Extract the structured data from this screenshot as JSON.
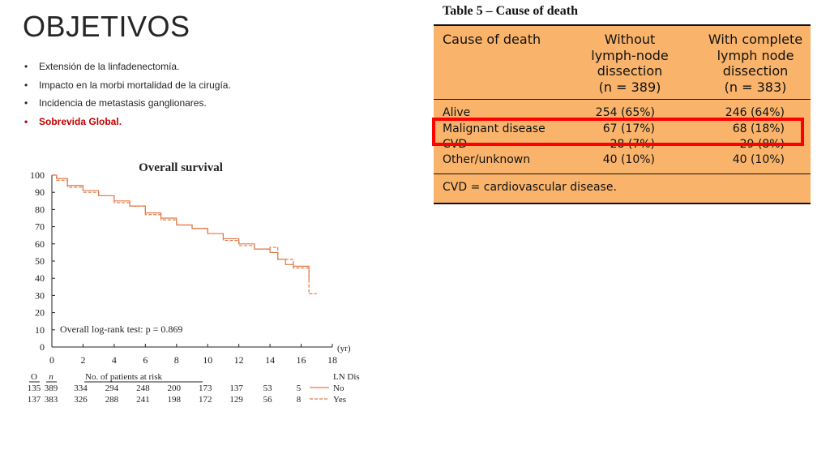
{
  "slide": {
    "title": "OBJETIVOS",
    "bullets": [
      {
        "text": "Extensión de la linfadenectomía.",
        "highlight": false
      },
      {
        "text": "Impacto en la morbi mortalidad de la cirugía.",
        "highlight": false
      },
      {
        "text": "Incidencia de metastasis ganglionares.",
        "highlight": false
      },
      {
        "text": "Sobrevida Global.",
        "highlight": true
      }
    ],
    "bullet_glyph": "•",
    "highlight_color": "#c00000"
  },
  "chart_data": {
    "type": "line",
    "title": "Overall survival",
    "annotation": "Overall log-rank test: p = 0.869",
    "x_unit": "(yr)",
    "xlim": [
      0,
      18
    ],
    "ylim": [
      0,
      100
    ],
    "x_ticks": [
      "0",
      "2",
      "4",
      "6",
      "8",
      "10",
      "12",
      "14",
      "16",
      "18"
    ],
    "y_ticks": [
      "0",
      "10",
      "20",
      "30",
      "40",
      "50",
      "60",
      "70",
      "80",
      "90",
      "100"
    ],
    "series": [
      {
        "name": "No",
        "style": "solid",
        "color": "#e07b4a",
        "x": [
          0,
          0.3,
          1,
          2,
          3,
          4,
          5,
          6,
          7,
          8,
          9,
          10,
          11,
          12,
          13,
          14,
          14.5,
          15,
          15.5,
          16,
          16.5
        ],
        "y": [
          100,
          98,
          94,
          91,
          88,
          85,
          82,
          78,
          75,
          71,
          69,
          66,
          63,
          60,
          57,
          55,
          51,
          48,
          47,
          47,
          39
        ]
      },
      {
        "name": "Yes",
        "style": "dashed",
        "color": "#e07b4a",
        "x": [
          0,
          0.3,
          1,
          2,
          3,
          4,
          5,
          6,
          7,
          8,
          9,
          10,
          11,
          12,
          13,
          14,
          14.5,
          15,
          15.5,
          16,
          16.5,
          17
        ],
        "y": [
          100,
          97,
          93,
          90,
          88,
          84,
          82,
          77,
          74,
          71,
          69,
          66,
          62,
          59,
          57,
          58,
          51,
          51,
          46,
          46,
          31,
          31
        ]
      }
    ],
    "risk_table": {
      "header": {
        "O": "O",
        "n": "n",
        "label": "No. of patients at risk",
        "legend_title": "LN Dis"
      },
      "time_points": [
        2,
        4,
        6,
        8,
        10,
        12,
        14,
        16
      ],
      "rows": [
        {
          "O": "135",
          "n": "389",
          "counts": [
            "334",
            "294",
            "248",
            "200",
            "173",
            "137",
            "53",
            "5"
          ],
          "legend": "No"
        },
        {
          "O": "137",
          "n": "383",
          "counts": [
            "326",
            "288",
            "241",
            "198",
            "172",
            "129",
            "56",
            "8"
          ],
          "legend": "Yes"
        }
      ]
    }
  },
  "table": {
    "title": "Table 5 – Cause of death",
    "headers": {
      "col0": "Cause of death",
      "col1": [
        "Without",
        "lymph-node",
        "dissection",
        "(n = 389)"
      ],
      "col2": [
        "With complete",
        "lymph node",
        "dissection",
        "(n = 383)"
      ]
    },
    "rows": [
      {
        "cause": "Alive",
        "without": "254 (65%)",
        "with": "246 (64%)"
      },
      {
        "cause": "Malignant disease",
        "without": "67 (17%)",
        "with": "68 (18%)"
      },
      {
        "cause": "CVD",
        "without": "28 (7%)",
        "with": "29 (8%)"
      },
      {
        "cause": "Other/unknown",
        "without": "40 (10%)",
        "with": "40 (10%)"
      }
    ],
    "footnote": "CVD = cardiovascular disease.",
    "highlighted_row": "Malignant disease",
    "bg_color": "#f9b36b",
    "highlight_color": "#ff0000"
  }
}
